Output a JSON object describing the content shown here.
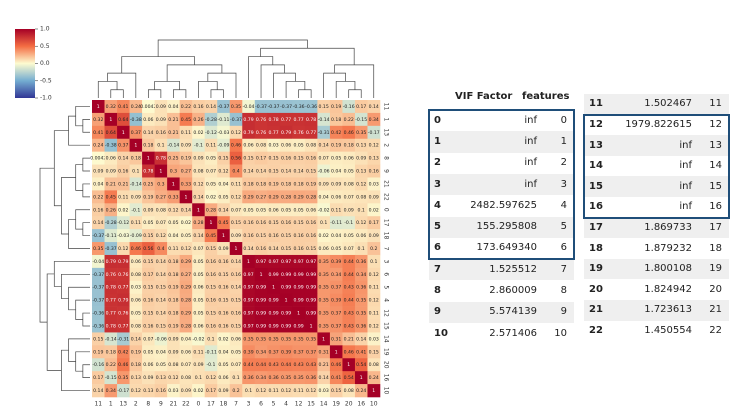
{
  "chart_data": {
    "type": "heatmap",
    "labels": [
      "11",
      "1",
      "13",
      "2",
      "8",
      "9",
      "21",
      "22",
      "0",
      "17",
      "18",
      "7",
      "3",
      "6",
      "5",
      "4",
      "12",
      "15",
      "14",
      "19",
      "20",
      "16",
      "10"
    ],
    "vlim": [
      -1,
      1
    ],
    "colorbar_ticks": [
      {
        "value": 1,
        "label": "1.0"
      },
      {
        "value": 0.5,
        "label": "0.5"
      },
      {
        "value": 0,
        "label": "0.0"
      },
      {
        "value": -0.5,
        "label": "-0.5"
      },
      {
        "value": -1,
        "label": "-1.0"
      }
    ],
    "colormap": [
      "#313695",
      "#74add1",
      "#fdfbd0",
      "#f46d43",
      "#a50026"
    ],
    "values": [
      [
        1,
        0.32,
        0.41,
        0.24,
        0.0042,
        0.09,
        0.04,
        0.22,
        0.16,
        0.14,
        -0.37,
        0.35,
        -0.04,
        -0.37,
        -0.37,
        -0.37,
        -0.36,
        -0.36,
        0.15,
        0.19,
        -0.16,
        0.17,
        0.14
      ],
      [
        0.32,
        1,
        0.64,
        -0.38,
        0.06,
        0.09,
        0.21,
        0.45,
        0.26,
        -0.28,
        -0.11,
        -0.37,
        0.79,
        0.76,
        0.78,
        0.77,
        0.77,
        0.78,
        -0.14,
        0.18,
        0.22,
        -0.15,
        0.34
      ],
      [
        0.41,
        0.64,
        1,
        0.37,
        0.14,
        0.16,
        0.21,
        0.11,
        0.02,
        -0.12,
        -0.03,
        0.12,
        0.79,
        0.76,
        0.77,
        0.79,
        0.76,
        0.77,
        -0.31,
        0.42,
        0.46,
        0.35,
        -0.17
      ],
      [
        0.24,
        -0.38,
        0.37,
        1,
        0.18,
        0.1,
        -0.14,
        0.09,
        -0.1,
        0.11,
        -0.09,
        0.46,
        0.06,
        0.08,
        0.03,
        0.06,
        0.05,
        0.08,
        0.14,
        0.19,
        0.18,
        0.13,
        0.12
      ],
      [
        0.0042,
        0.06,
        0.14,
        0.18,
        1,
        0.78,
        0.25,
        0.19,
        0.09,
        0.05,
        0.15,
        0.56,
        0.15,
        0.17,
        0.15,
        0.16,
        0.15,
        0.16,
        0.07,
        0.05,
        0.06,
        0.09,
        0.13
      ],
      [
        0.09,
        0.09,
        0.16,
        0.1,
        0.78,
        1,
        0.3,
        0.27,
        0.08,
        0.07,
        0.12,
        0.4,
        0.14,
        0.14,
        0.15,
        0.14,
        0.14,
        0.15,
        -0.06,
        0.04,
        0.05,
        0.13,
        0.16
      ],
      [
        0.04,
        0.21,
        0.21,
        -0.14,
        0.25,
        0.3,
        1,
        0.33,
        0.12,
        0.05,
        0.04,
        0.11,
        0.18,
        0.18,
        0.19,
        0.18,
        0.18,
        0.19,
        0.09,
        0.09,
        0.08,
        0.12,
        0.03
      ],
      [
        0.22,
        0.45,
        0.11,
        0.09,
        0.19,
        0.27,
        0.33,
        1,
        0.14,
        0.02,
        0.05,
        0.12,
        0.29,
        0.27,
        0.29,
        0.28,
        0.29,
        0.28,
        0.04,
        0.06,
        0.07,
        0.08,
        0.09
      ],
      [
        0.16,
        0.26,
        0.02,
        -0.1,
        0.09,
        0.08,
        0.12,
        0.14,
        1,
        0.28,
        0.14,
        0.07,
        0.05,
        0.05,
        0.06,
        0.05,
        0.05,
        0.06,
        -0.02,
        0.11,
        0.09,
        0.1,
        0.02
      ],
      [
        0.14,
        -0.28,
        -0.12,
        0.11,
        0.05,
        0.07,
        0.05,
        0.02,
        0.28,
        1,
        0.45,
        0.15,
        0.16,
        0.16,
        0.15,
        0.16,
        0.15,
        0.16,
        0.1,
        -0.11,
        -0.1,
        0.12,
        0.17
      ],
      [
        -0.37,
        -0.11,
        -0.03,
        -0.09,
        0.15,
        0.12,
        0.04,
        0.05,
        0.14,
        0.45,
        1,
        0.09,
        0.16,
        0.15,
        0.16,
        0.15,
        0.16,
        0.16,
        0.02,
        0.04,
        0.05,
        0.06,
        0.09
      ],
      [
        0.35,
        -0.37,
        0.12,
        0.46,
        0.56,
        0.4,
        0.11,
        0.12,
        0.07,
        0.15,
        0.09,
        1,
        0.14,
        0.16,
        0.14,
        0.15,
        0.16,
        0.15,
        0.06,
        0.05,
        0.07,
        0.1,
        0.2
      ],
      [
        -0.04,
        0.79,
        0.79,
        0.06,
        0.15,
        0.14,
        0.18,
        0.29,
        0.05,
        0.16,
        0.16,
        0.14,
        1,
        0.97,
        0.97,
        0.97,
        0.97,
        0.97,
        0.35,
        0.39,
        0.44,
        0.36,
        0.1
      ],
      [
        -0.37,
        0.76,
        0.76,
        0.08,
        0.17,
        0.14,
        0.18,
        0.27,
        0.05,
        0.16,
        0.15,
        0.16,
        0.97,
        1,
        0.99,
        0.99,
        0.99,
        0.99,
        0.35,
        0.34,
        0.44,
        0.34,
        0.12
      ],
      [
        -0.37,
        0.78,
        0.77,
        0.03,
        0.15,
        0.15,
        0.19,
        0.29,
        0.06,
        0.15,
        0.16,
        0.14,
        0.97,
        0.99,
        1,
        0.99,
        0.99,
        0.99,
        0.35,
        0.37,
        0.43,
        0.36,
        0.11
      ],
      [
        -0.37,
        0.77,
        0.79,
        0.06,
        0.16,
        0.14,
        0.18,
        0.28,
        0.05,
        0.16,
        0.15,
        0.15,
        0.97,
        0.99,
        0.99,
        1,
        0.99,
        0.99,
        0.35,
        0.39,
        0.44,
        0.35,
        0.12
      ],
      [
        -0.36,
        0.77,
        0.76,
        0.05,
        0.15,
        0.14,
        0.18,
        0.29,
        0.05,
        0.15,
        0.16,
        0.16,
        0.97,
        0.99,
        0.99,
        0.99,
        1,
        0.99,
        0.35,
        0.37,
        0.43,
        0.35,
        0.11
      ],
      [
        -0.36,
        0.78,
        0.77,
        0.08,
        0.16,
        0.15,
        0.19,
        0.28,
        0.06,
        0.16,
        0.16,
        0.15,
        0.97,
        0.99,
        0.99,
        0.99,
        0.99,
        1,
        0.35,
        0.37,
        0.43,
        0.36,
        0.12
      ],
      [
        0.15,
        -0.14,
        -0.31,
        0.14,
        0.07,
        -0.06,
        0.09,
        0.04,
        -0.02,
        0.1,
        0.02,
        0.06,
        0.35,
        0.35,
        0.35,
        0.35,
        0.35,
        0.35,
        1,
        0.31,
        0.21,
        0.14,
        0.03
      ],
      [
        0.19,
        0.18,
        0.42,
        0.19,
        0.05,
        0.04,
        0.09,
        0.06,
        0.11,
        -0.11,
        0.04,
        0.05,
        0.39,
        0.34,
        0.37,
        0.39,
        0.37,
        0.37,
        0.31,
        1,
        0.46,
        0.41,
        0.15
      ],
      [
        -0.16,
        0.22,
        0.46,
        0.18,
        0.06,
        0.05,
        0.08,
        0.07,
        0.09,
        -0.1,
        0.05,
        0.07,
        0.44,
        0.44,
        0.43,
        0.44,
        0.43,
        0.43,
        0.21,
        0.46,
        1,
        0.54,
        0.08
      ],
      [
        0.17,
        -0.15,
        0.35,
        0.13,
        0.09,
        0.13,
        0.12,
        0.08,
        0.1,
        0.12,
        0.06,
        0.1,
        0.36,
        0.34,
        0.36,
        0.35,
        0.35,
        0.36,
        0.14,
        0.41,
        0.54,
        1,
        0.24
      ],
      [
        0.14,
        0.34,
        -0.17,
        0.12,
        0.13,
        0.16,
        0.03,
        0.09,
        0.02,
        0.17,
        0.09,
        0.2,
        0.1,
        0.12,
        0.11,
        0.12,
        0.11,
        0.12,
        0.03,
        0.15,
        0.08,
        0.24,
        1
      ]
    ]
  },
  "vif_table_1": {
    "columns": [
      "VIF Factor",
      "features"
    ],
    "rows": [
      [
        0,
        "inf",
        0
      ],
      [
        1,
        "inf",
        1
      ],
      [
        2,
        "inf",
        2
      ],
      [
        3,
        "inf",
        3
      ],
      [
        4,
        "2482.597625",
        4
      ],
      [
        5,
        "155.295808",
        5
      ],
      [
        6,
        "173.649340",
        6
      ],
      [
        7,
        "1.525512",
        7
      ],
      [
        8,
        "2.860009",
        8
      ],
      [
        9,
        "5.574139",
        9
      ],
      [
        10,
        "2.571406",
        10
      ]
    ]
  },
  "vif_table_2": {
    "rows": [
      [
        11,
        "1.502467",
        11
      ],
      [
        12,
        "1979.822615",
        12
      ],
      [
        13,
        "inf",
        13
      ],
      [
        14,
        "inf",
        14
      ],
      [
        15,
        "inf",
        15
      ],
      [
        16,
        "inf",
        16
      ],
      [
        17,
        "1.869733",
        17
      ],
      [
        18,
        "1.879232",
        18
      ],
      [
        19,
        "1.800108",
        19
      ],
      [
        20,
        "1.824942",
        20
      ],
      [
        21,
        "1.723613",
        21
      ],
      [
        22,
        "1.450554",
        22
      ]
    ]
  }
}
